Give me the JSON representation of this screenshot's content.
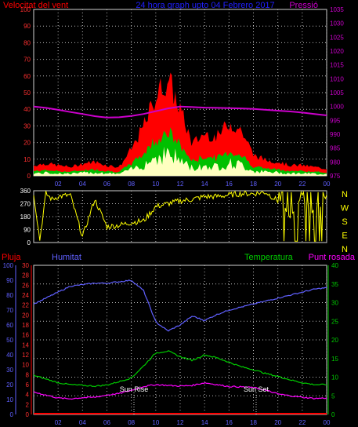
{
  "header": {
    "left_label": "Velocitat del vent",
    "center_label": "24 hora graph upto  04 Febrero 2017",
    "right_label": "Pressió"
  },
  "direction_labels": [
    "N",
    "W",
    "S",
    "E",
    "N"
  ],
  "bottom_header": {
    "pluja": "Pluja",
    "humitat": "Humitat",
    "temperatura": "Temperatura",
    "punt_rosada": "Punt rosada"
  },
  "annotations": {
    "sun_rise": "Sun Rise",
    "sun_set": "Sun Set"
  },
  "x_ticks": [
    "02",
    "04",
    "06",
    "08",
    "10",
    "12",
    "14",
    "16",
    "18",
    "20",
    "22",
    "00"
  ],
  "colors": {
    "wind_gust": "#ff0000",
    "wind_avg": "#00c000",
    "wind_min": "#ffffc0",
    "pressure": "#cc00cc",
    "direction": "#ffff00",
    "humidity": "#6060ff",
    "temperature": "#00cc00",
    "dew_point": "#ff00ff",
    "rain": "#ff0000"
  },
  "chart_data": [
    {
      "type": "line",
      "title": "24 hora graph upto  04 Febrero 2017",
      "x_unit": "hour",
      "left_axis": {
        "label": "Velocitat del vent",
        "ticks": [
          0,
          10,
          20,
          30,
          40,
          50,
          60,
          70,
          80,
          90,
          100
        ],
        "range": [
          0,
          100
        ]
      },
      "right_axis": {
        "label": "Pressió",
        "ticks": [
          975,
          980,
          985,
          990,
          995,
          1000,
          1005,
          1010,
          1015,
          1020,
          1025,
          1030,
          1035
        ],
        "range": [
          975,
          1035
        ]
      },
      "series": [
        {
          "name": "Velocitat del vent",
          "x": [
            0,
            1,
            2,
            3,
            4,
            5,
            6,
            7,
            8,
            9,
            10,
            11,
            12,
            13,
            14,
            15,
            16,
            17,
            18,
            19,
            20,
            21,
            22,
            23,
            24
          ],
          "values": [
            6,
            7,
            6,
            5,
            7,
            8,
            6,
            5,
            15,
            28,
            45,
            55,
            38,
            18,
            24,
            22,
            30,
            26,
            12,
            9,
            8,
            6,
            6,
            5,
            4
          ]
        },
        {
          "name": "Pressió",
          "x": [
            0,
            1,
            2,
            3,
            4,
            5,
            6,
            7,
            8,
            9,
            10,
            11,
            12,
            13,
            14,
            15,
            16,
            17,
            18,
            19,
            20,
            21,
            22,
            23,
            24
          ],
          "values": [
            1000.0,
            999.5,
            998.8,
            998.0,
            997.3,
            996.5,
            996.0,
            996.1,
            996.6,
            997.3,
            998.3,
            999.3,
            1000.0,
            999.8,
            999.6,
            999.5,
            999.4,
            999.3,
            999.1,
            998.8,
            998.5,
            998.2,
            997.8,
            997.3,
            996.8
          ]
        }
      ]
    },
    {
      "type": "line",
      "x_unit": "hour",
      "left_axis": {
        "ticks": [
          0,
          90,
          180,
          270,
          360
        ],
        "range": [
          0,
          360
        ]
      },
      "right_axis": {
        "ticks": [
          "N",
          "W",
          "S",
          "E",
          "N"
        ]
      },
      "series": [
        {
          "name": "direction",
          "x": [
            0,
            0.5,
            1,
            1.5,
            2,
            3,
            4,
            5,
            6,
            7,
            8,
            9,
            10,
            11,
            12,
            13,
            14,
            15,
            16,
            17,
            18,
            19,
            20,
            21,
            22,
            23,
            24
          ],
          "values": [
            340,
            20,
            340,
            300,
            320,
            330,
            40,
            300,
            110,
            120,
            140,
            150,
            250,
            270,
            290,
            300,
            320,
            320,
            330,
            340,
            340,
            350,
            290,
            180,
            320,
            200,
            330
          ]
        }
      ]
    },
    {
      "type": "line",
      "x_unit": "hour",
      "left_axis_humitat": {
        "label": "Humitat",
        "ticks": [
          0,
          10,
          20,
          30,
          40,
          50,
          60,
          70,
          80,
          90,
          100
        ],
        "range": [
          0,
          100
        ]
      },
      "left_axis_pluja": {
        "label": "Pluja",
        "ticks": [
          0,
          2,
          4,
          6,
          8,
          10,
          12,
          14,
          16,
          18,
          20,
          22,
          24,
          26,
          28,
          30
        ],
        "range": [
          0,
          30
        ]
      },
      "right_axis": {
        "label": "Temperatura",
        "ticks": [
          0,
          5,
          10,
          15,
          20,
          25,
          30,
          35,
          40
        ],
        "range": [
          0,
          40
        ]
      },
      "series": [
        {
          "name": "Humitat",
          "x": [
            0,
            1,
            2,
            3,
            4,
            5,
            6,
            7,
            8,
            9,
            10,
            11,
            12,
            13,
            14,
            15,
            16,
            17,
            18,
            19,
            20,
            21,
            22,
            23,
            24
          ],
          "values": [
            74,
            78,
            82,
            86,
            87,
            88,
            88,
            89,
            90,
            83,
            62,
            56,
            60,
            66,
            63,
            67,
            70,
            72,
            74,
            76,
            78,
            80,
            82,
            84,
            85
          ]
        },
        {
          "name": "Temperatura",
          "x": [
            0,
            1,
            2,
            3,
            4,
            5,
            6,
            7,
            8,
            9,
            10,
            11,
            12,
            13,
            14,
            15,
            16,
            17,
            18,
            19,
            20,
            21,
            22,
            23,
            24
          ],
          "values": [
            10.5,
            9.5,
            8.5,
            8.0,
            7.8,
            7.6,
            7.9,
            8.8,
            9.8,
            13.0,
            16.5,
            17.0,
            15.5,
            14.5,
            16.0,
            15.2,
            14.0,
            12.8,
            12.0,
            11.0,
            10.2,
            9.3,
            8.5,
            8.0,
            8.0
          ]
        },
        {
          "name": "Punt rosada",
          "x": [
            0,
            1,
            2,
            3,
            4,
            5,
            6,
            7,
            8,
            9,
            10,
            11,
            12,
            13,
            14,
            15,
            16,
            17,
            18,
            19,
            20,
            21,
            22,
            23,
            24
          ],
          "values": [
            6.0,
            5.2,
            4.4,
            4.2,
            4.5,
            4.6,
            5.2,
            5.6,
            6.5,
            7.5,
            8.0,
            7.8,
            7.6,
            7.8,
            8.5,
            8.0,
            7.5,
            7.4,
            7.2,
            6.5,
            5.5,
            5.0,
            4.6,
            4.3,
            4.4
          ]
        },
        {
          "name": "Pluja",
          "x": [
            0,
            24
          ],
          "values": [
            0,
            0
          ]
        }
      ]
    }
  ]
}
